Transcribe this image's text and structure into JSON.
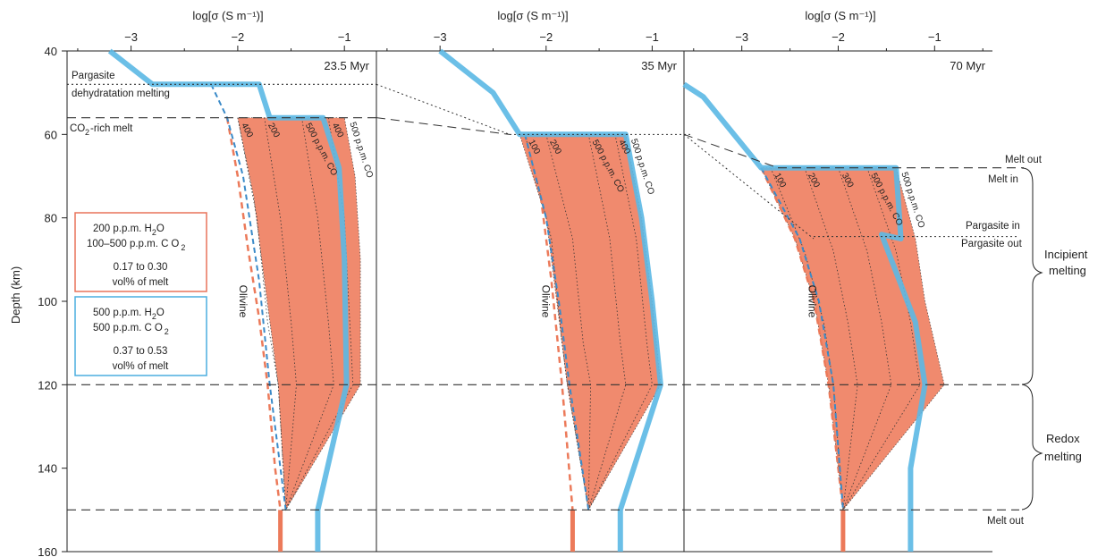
{
  "chart_data": {
    "type": "line",
    "xlabel": "log[σ (S m⁻¹)]",
    "ylabel": "Depth (km)",
    "ylim": [
      160,
      40
    ],
    "y_ticks": [
      40,
      60,
      80,
      100,
      120,
      140,
      160
    ],
    "panels": [
      {
        "label": "23.5 Myr",
        "xlim": [
          -3.6,
          -0.7
        ],
        "x_ticks": [
          -3,
          -2,
          -1
        ],
        "x_tick_labels": [
          "−3",
          "−2",
          "−1"
        ],
        "olivine": [
          [
            -2.1,
            56
          ],
          [
            -2.0,
            70
          ],
          [
            -1.9,
            88
          ],
          [
            -1.8,
            104
          ],
          [
            -1.72,
            120
          ],
          [
            -1.65,
            140
          ],
          [
            -1.6,
            150
          ]
        ],
        "olivine_low": [
          [
            -2.25,
            50
          ],
          [
            -2.15,
            65
          ],
          [
            -2.0,
            85
          ],
          [
            -1.9,
            105
          ],
          [
            -1.8,
            125
          ],
          [
            -1.7,
            145
          ],
          [
            -1.6,
            150
          ]
        ],
        "band_left": [
          [
            -2.0,
            56
          ],
          [
            -1.85,
            75
          ],
          [
            -1.75,
            95
          ],
          [
            -1.62,
            120
          ],
          [
            -1.55,
            150
          ]
        ],
        "band_right": [
          [
            -1.0,
            56
          ],
          [
            -0.9,
            70
          ],
          [
            -0.85,
            90
          ],
          [
            -0.85,
            120
          ],
          [
            -1.55,
            150
          ]
        ],
        "blue_curve": [
          [
            -3.2,
            40
          ],
          [
            -2.8,
            48
          ],
          [
            -2.35,
            48
          ],
          [
            -1.8,
            48
          ],
          [
            -1.7,
            56
          ],
          [
            -1.2,
            56
          ],
          [
            -1.05,
            68
          ],
          [
            -1.0,
            90
          ],
          [
            -0.98,
            120
          ],
          [
            -1.25,
            150
          ],
          [
            -1.25,
            160
          ]
        ],
        "blue_shallow": [
          [
            -2.25,
            48
          ],
          [
            -2.1,
            56
          ],
          [
            -1.95,
            70
          ],
          [
            -1.8,
            95
          ],
          [
            -1.7,
            120
          ],
          [
            -1.55,
            150
          ]
        ],
        "contours": [
          {
            "label": "100",
            "points": [
              [
                -2.0,
                56
              ],
              [
                -1.82,
                80
              ],
              [
                -1.72,
                105
              ],
              [
                -1.62,
                120
              ],
              [
                -1.55,
                150
              ]
            ]
          },
          {
            "label": "200",
            "points": [
              [
                -1.75,
                56
              ],
              [
                -1.6,
                80
              ],
              [
                -1.5,
                105
              ],
              [
                -1.45,
                120
              ],
              [
                -1.55,
                150
              ]
            ]
          },
          {
            "label": "300",
            "points": [
              [
                -1.4,
                56
              ],
              [
                -1.25,
                80
              ],
              [
                -1.15,
                105
              ],
              [
                -1.1,
                120
              ],
              [
                -1.55,
                150
              ]
            ]
          },
          {
            "label": "400",
            "points": [
              [
                -1.15,
                56
              ],
              [
                -1.0,
                80
              ],
              [
                -0.95,
                105
              ],
              [
                -0.92,
                120
              ],
              [
                -1.55,
                150
              ]
            ]
          }
        ],
        "band_labels": [
          "400",
          "200",
          "500 p.p.m. CO",
          "400",
          "500 p.p.m. CO"
        ],
        "olivine_label": "Olivine"
      },
      {
        "label": "35 Myr",
        "xlim": [
          -3.6,
          -0.7
        ],
        "x_ticks": [
          -3,
          -2,
          -1
        ],
        "x_tick_labels": [
          "−3",
          "−2",
          "−1"
        ],
        "olivine": [
          [
            -2.2,
            60
          ],
          [
            -2.05,
            75
          ],
          [
            -1.95,
            95
          ],
          [
            -1.85,
            120
          ],
          [
            -1.75,
            150
          ]
        ],
        "band_left": [
          [
            -2.25,
            60
          ],
          [
            -2.0,
            80
          ],
          [
            -1.9,
            100
          ],
          [
            -1.8,
            120
          ],
          [
            -1.6,
            150
          ]
        ],
        "band_right": [
          [
            -1.25,
            60
          ],
          [
            -1.1,
            80
          ],
          [
            -1.0,
            100
          ],
          [
            -0.92,
            120
          ],
          [
            -1.6,
            150
          ]
        ],
        "blue_curve": [
          [
            -3.0,
            40
          ],
          [
            -2.5,
            50
          ],
          [
            -2.25,
            60
          ],
          [
            -1.25,
            60
          ],
          [
            -1.1,
            80
          ],
          [
            -1.0,
            100
          ],
          [
            -0.92,
            120
          ],
          [
            -1.3,
            150
          ],
          [
            -1.3,
            160
          ]
        ],
        "blue_shallow": [
          [
            -2.2,
            60
          ],
          [
            -2.0,
            80
          ],
          [
            -1.88,
            100
          ],
          [
            -1.78,
            120
          ],
          [
            -1.6,
            150
          ]
        ],
        "contours": [
          {
            "label": "100",
            "points": [
              [
                -2.2,
                60
              ],
              [
                -1.95,
                85
              ],
              [
                -1.85,
                110
              ],
              [
                -1.8,
                120
              ],
              [
                -1.6,
                150
              ]
            ]
          },
          {
            "label": "200",
            "points": [
              [
                -2.0,
                60
              ],
              [
                -1.75,
                85
              ],
              [
                -1.65,
                110
              ],
              [
                -1.58,
                120
              ],
              [
                -1.6,
                150
              ]
            ]
          },
          {
            "label": "300",
            "points": [
              [
                -1.6,
                60
              ],
              [
                -1.4,
                85
              ],
              [
                -1.3,
                110
              ],
              [
                -1.25,
                120
              ],
              [
                -1.6,
                150
              ]
            ]
          },
          {
            "label": "400",
            "points": [
              [
                -1.35,
                60
              ],
              [
                -1.15,
                85
              ],
              [
                -1.05,
                110
              ],
              [
                -1.0,
                120
              ],
              [
                -1.6,
                150
              ]
            ]
          }
        ],
        "band_labels": [
          "100",
          "200",
          "500 p.p.m. CO",
          "400",
          "500 p.p.m. CO"
        ],
        "olivine_label": "Olivine"
      },
      {
        "label": "70 Myr",
        "xlim": [
          -3.6,
          -0.4
        ],
        "x_ticks": [
          -3,
          -2,
          -1
        ],
        "x_tick_labels": [
          "−3",
          "−2",
          "−1"
        ],
        "olivine": [
          [
            -2.8,
            68
          ],
          [
            -2.45,
            85
          ],
          [
            -2.25,
            100
          ],
          [
            -2.1,
            120
          ],
          [
            -1.95,
            150
          ]
        ],
        "band_left": [
          [
            -2.8,
            68
          ],
          [
            -2.45,
            85
          ],
          [
            -2.25,
            100
          ],
          [
            -2.1,
            120
          ],
          [
            -1.95,
            150
          ]
        ],
        "band_right": [
          [
            -1.4,
            68
          ],
          [
            -1.2,
            85
          ],
          [
            -1.1,
            100
          ],
          [
            -0.9,
            120
          ],
          [
            -1.95,
            150
          ]
        ],
        "blue_curve": [
          [
            -3.6,
            48
          ],
          [
            -3.4,
            51
          ],
          [
            -2.8,
            68
          ],
          [
            -1.4,
            68
          ],
          [
            -1.35,
            85
          ],
          [
            -1.55,
            84
          ],
          [
            -1.45,
            90
          ],
          [
            -1.2,
            105
          ],
          [
            -1.1,
            120
          ],
          [
            -1.25,
            140
          ],
          [
            -1.25,
            150
          ],
          [
            -1.25,
            160
          ]
        ],
        "blue_shallow": [
          [
            -2.8,
            68
          ],
          [
            -2.4,
            85
          ],
          [
            -2.2,
            100
          ],
          [
            -2.05,
            120
          ],
          [
            -1.95,
            150
          ]
        ],
        "contours": [
          {
            "label": "100",
            "points": [
              [
                -2.7,
                68
              ],
              [
                -2.35,
                88
              ],
              [
                -2.15,
                105
              ],
              [
                -2.05,
                120
              ],
              [
                -1.95,
                150
              ]
            ]
          },
          {
            "label": "200",
            "points": [
              [
                -2.35,
                68
              ],
              [
                -2.05,
                88
              ],
              [
                -1.9,
                105
              ],
              [
                -1.8,
                120
              ],
              [
                -1.95,
                150
              ]
            ]
          },
          {
            "label": "300",
            "points": [
              [
                -2.0,
                68
              ],
              [
                -1.7,
                88
              ],
              [
                -1.55,
                105
              ],
              [
                -1.45,
                120
              ],
              [
                -1.95,
                150
              ]
            ]
          },
          {
            "label": "400",
            "points": [
              [
                -1.7,
                68
              ],
              [
                -1.4,
                88
              ],
              [
                -1.25,
                105
              ],
              [
                -1.15,
                120
              ],
              [
                -1.95,
                150
              ]
            ]
          }
        ],
        "band_labels": [
          "100",
          "200",
          "300",
          "500 p.p.m. CO",
          "500 p.p.m. CO"
        ],
        "olivine_label": "Olivine"
      }
    ],
    "horizontal_lines": [
      {
        "depth": 48,
        "style": "dotted"
      },
      {
        "depth": 56,
        "style": "dashed"
      },
      {
        "depth": 120,
        "style": "dashed"
      },
      {
        "depth": 150,
        "style": "dashed"
      }
    ],
    "left_annotations": [
      {
        "text": "Pargasite"
      },
      {
        "text": "dehydratation melting"
      },
      {
        "text": "CO"
      },
      {
        "text": "2"
      },
      {
        "text": "-rich melt"
      }
    ],
    "right_annotations": [
      {
        "text": "Melt out"
      },
      {
        "text": "Melt in"
      },
      {
        "text": "Pargasite in"
      },
      {
        "text": "Pargasite out"
      },
      {
        "text": "Incipient"
      },
      {
        "text": "melting"
      },
      {
        "text": "Redox"
      },
      {
        "text": "melting"
      },
      {
        "text": "Melt out"
      }
    ],
    "legend": [
      {
        "color": "#e8735a",
        "lines": [
          "200 p.p.m.  H",
          "2",
          "O",
          "100–500 p.p.m. C",
          "O",
          "2",
          "0.17 to 0.30",
          "vol% of melt"
        ]
      },
      {
        "color": "#4aaedf",
        "lines": [
          "500 p.p.m.  H",
          "2",
          "O",
          "500 p.p.m. C",
          "O",
          "2",
          "0.37 to 0.53",
          "vol% of melt"
        ]
      }
    ],
    "colors": {
      "band_fill": "#f08a6e",
      "orange_line": "#ec7a5a",
      "blue_line": "#5bb8e4",
      "blue_dashed": "#3a8ac8",
      "grid_line": "#333333"
    }
  }
}
